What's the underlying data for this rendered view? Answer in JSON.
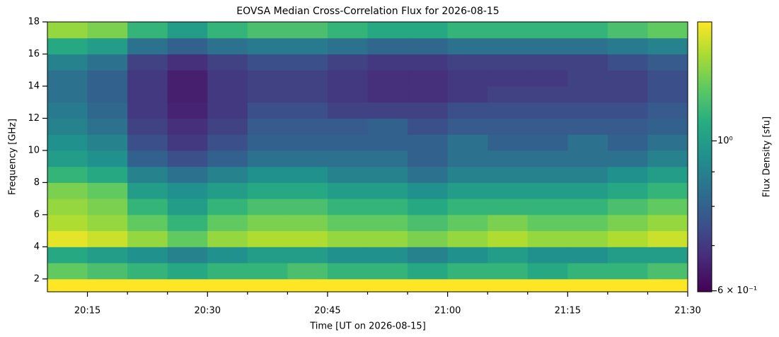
{
  "chart_data": {
    "type": "heatmap",
    "title": "EOVSA Median Cross-Correlation Flux for 2026-08-15",
    "x_label": "Time [UT on 2026-08-15]",
    "y_label": "Frequency [GHz]",
    "colorbar_label": "Flux Density [sfu]",
    "colormap": "viridis",
    "color_scale": "log",
    "x_bins": [
      "20:10",
      "20:15",
      "20:20",
      "20:25",
      "20:30",
      "20:35",
      "20:40",
      "20:45",
      "20:50",
      "20:55",
      "21:00",
      "21:05",
      "21:10",
      "21:15",
      "21:20",
      "21:25",
      "21:30"
    ],
    "y_bins": [
      1.2,
      2,
      3,
      4,
      5,
      6,
      7,
      8,
      9,
      10,
      11,
      12,
      13,
      14,
      15,
      16,
      17,
      18
    ],
    "values": [
      [
        1.5,
        1.5,
        1.5,
        1.5,
        1.5,
        1.5,
        1.5,
        1.5,
        1.5,
        1.5,
        1.5,
        1.5,
        1.5,
        1.5,
        1.5,
        1.5
      ],
      [
        1.2,
        1.15,
        1.1,
        1.05,
        1.1,
        1.1,
        1.15,
        1.1,
        1.1,
        1.05,
        1.1,
        1.1,
        1.05,
        1.1,
        1.1,
        1.15
      ],
      [
        1.05,
        1.0,
        0.95,
        0.9,
        0.95,
        1.0,
        1.0,
        0.95,
        0.95,
        0.9,
        0.95,
        1.0,
        0.95,
        0.95,
        1.0,
        1.0
      ],
      [
        1.45,
        1.4,
        1.3,
        1.2,
        1.3,
        1.35,
        1.35,
        1.3,
        1.3,
        1.25,
        1.3,
        1.35,
        1.3,
        1.3,
        1.35,
        1.4
      ],
      [
        1.35,
        1.3,
        1.2,
        1.1,
        1.2,
        1.25,
        1.25,
        1.2,
        1.2,
        1.15,
        1.2,
        1.25,
        1.2,
        1.2,
        1.25,
        1.3
      ],
      [
        1.3,
        1.25,
        1.1,
        1.0,
        1.1,
        1.15,
        1.15,
        1.1,
        1.1,
        1.05,
        1.1,
        1.1,
        1.1,
        1.1,
        1.15,
        1.2
      ],
      [
        1.25,
        1.2,
        1.0,
        0.95,
        1.0,
        1.05,
        1.05,
        1.0,
        1.0,
        0.95,
        1.0,
        1.0,
        1.0,
        1.0,
        1.05,
        1.1
      ],
      [
        1.1,
        1.05,
        0.9,
        0.85,
        0.9,
        0.95,
        0.95,
        0.9,
        0.9,
        0.85,
        0.9,
        0.9,
        0.9,
        0.9,
        0.95,
        1.0
      ],
      [
        1.0,
        0.95,
        0.8,
        0.75,
        0.8,
        0.85,
        0.85,
        0.85,
        0.85,
        0.8,
        0.85,
        0.85,
        0.85,
        0.85,
        0.85,
        0.9
      ],
      [
        0.95,
        0.9,
        0.75,
        0.7,
        0.75,
        0.8,
        0.8,
        0.8,
        0.8,
        0.8,
        0.85,
        0.8,
        0.8,
        0.85,
        0.8,
        0.85
      ],
      [
        0.9,
        0.85,
        0.72,
        0.68,
        0.72,
        0.78,
        0.78,
        0.78,
        0.8,
        0.75,
        0.78,
        0.78,
        0.78,
        0.78,
        0.78,
        0.8
      ],
      [
        0.88,
        0.82,
        0.7,
        0.66,
        0.7,
        0.75,
        0.75,
        0.72,
        0.72,
        0.72,
        0.75,
        0.75,
        0.75,
        0.75,
        0.75,
        0.78
      ],
      [
        0.85,
        0.8,
        0.7,
        0.65,
        0.7,
        0.72,
        0.72,
        0.7,
        0.68,
        0.68,
        0.7,
        0.72,
        0.72,
        0.72,
        0.72,
        0.75
      ],
      [
        0.85,
        0.8,
        0.7,
        0.65,
        0.7,
        0.72,
        0.72,
        0.7,
        0.68,
        0.68,
        0.7,
        0.7,
        0.7,
        0.72,
        0.72,
        0.75
      ],
      [
        0.9,
        0.85,
        0.72,
        0.68,
        0.72,
        0.75,
        0.75,
        0.72,
        0.7,
        0.7,
        0.72,
        0.72,
        0.72,
        0.72,
        0.75,
        0.78
      ],
      [
        1.05,
        1.0,
        0.85,
        0.8,
        0.85,
        0.88,
        0.88,
        0.85,
        0.82,
        0.82,
        0.85,
        0.85,
        0.85,
        0.85,
        0.88,
        0.9
      ],
      [
        1.3,
        1.25,
        1.1,
        1.0,
        1.1,
        1.15,
        1.15,
        1.1,
        1.05,
        1.05,
        1.1,
        1.1,
        1.1,
        1.1,
        1.15,
        1.2
      ]
    ],
    "xlim": [
      "20:10",
      "21:30"
    ],
    "xticks": [
      "20:15",
      "20:30",
      "20:45",
      "21:00",
      "21:15",
      "21:30"
    ],
    "xminorticks": [
      "20:20",
      "20:25",
      "20:35",
      "20:40",
      "20:50",
      "20:55",
      "21:05",
      "21:10",
      "21:20",
      "21:25"
    ],
    "ylim": [
      1.2,
      18
    ],
    "yticks": [
      2,
      4,
      6,
      8,
      10,
      12,
      14,
      16,
      18
    ],
    "clim": [
      0.598,
      1.5
    ],
    "cticks": [
      {
        "value": 0.6,
        "label": "6 × 10⁻¹"
      },
      {
        "value": 1,
        "label": "10⁰"
      }
    ],
    "cminorticks": [
      0.7,
      0.8,
      0.9
    ]
  }
}
